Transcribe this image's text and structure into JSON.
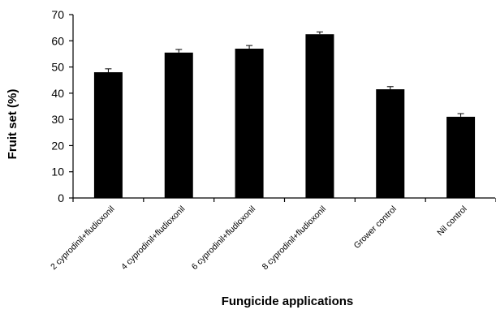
{
  "chart_data": {
    "type": "bar",
    "categories": [
      "2 cyprodinil+fludioxonil",
      "4 cyprodinil+fludioxonil",
      "6 cyprodinil+fludioxonil",
      "8 cyprodinil+fludioxonil",
      "Grower control",
      "Nil control"
    ],
    "values": [
      48,
      55.5,
      57,
      62.5,
      41.5,
      31
    ],
    "error": [
      1.3,
      1.2,
      1.2,
      0.9,
      1.0,
      1.2
    ],
    "title": "",
    "xlabel": "Fungicide applications",
    "ylabel": "Fruit set (%)",
    "ylim": [
      0,
      70
    ],
    "yticks": [
      "0",
      "10",
      "20",
      "30",
      "40",
      "50",
      "60",
      "70"
    ],
    "grid": false,
    "legend": "none",
    "bar_color": "#000000",
    "axis_color": "#000000"
  }
}
